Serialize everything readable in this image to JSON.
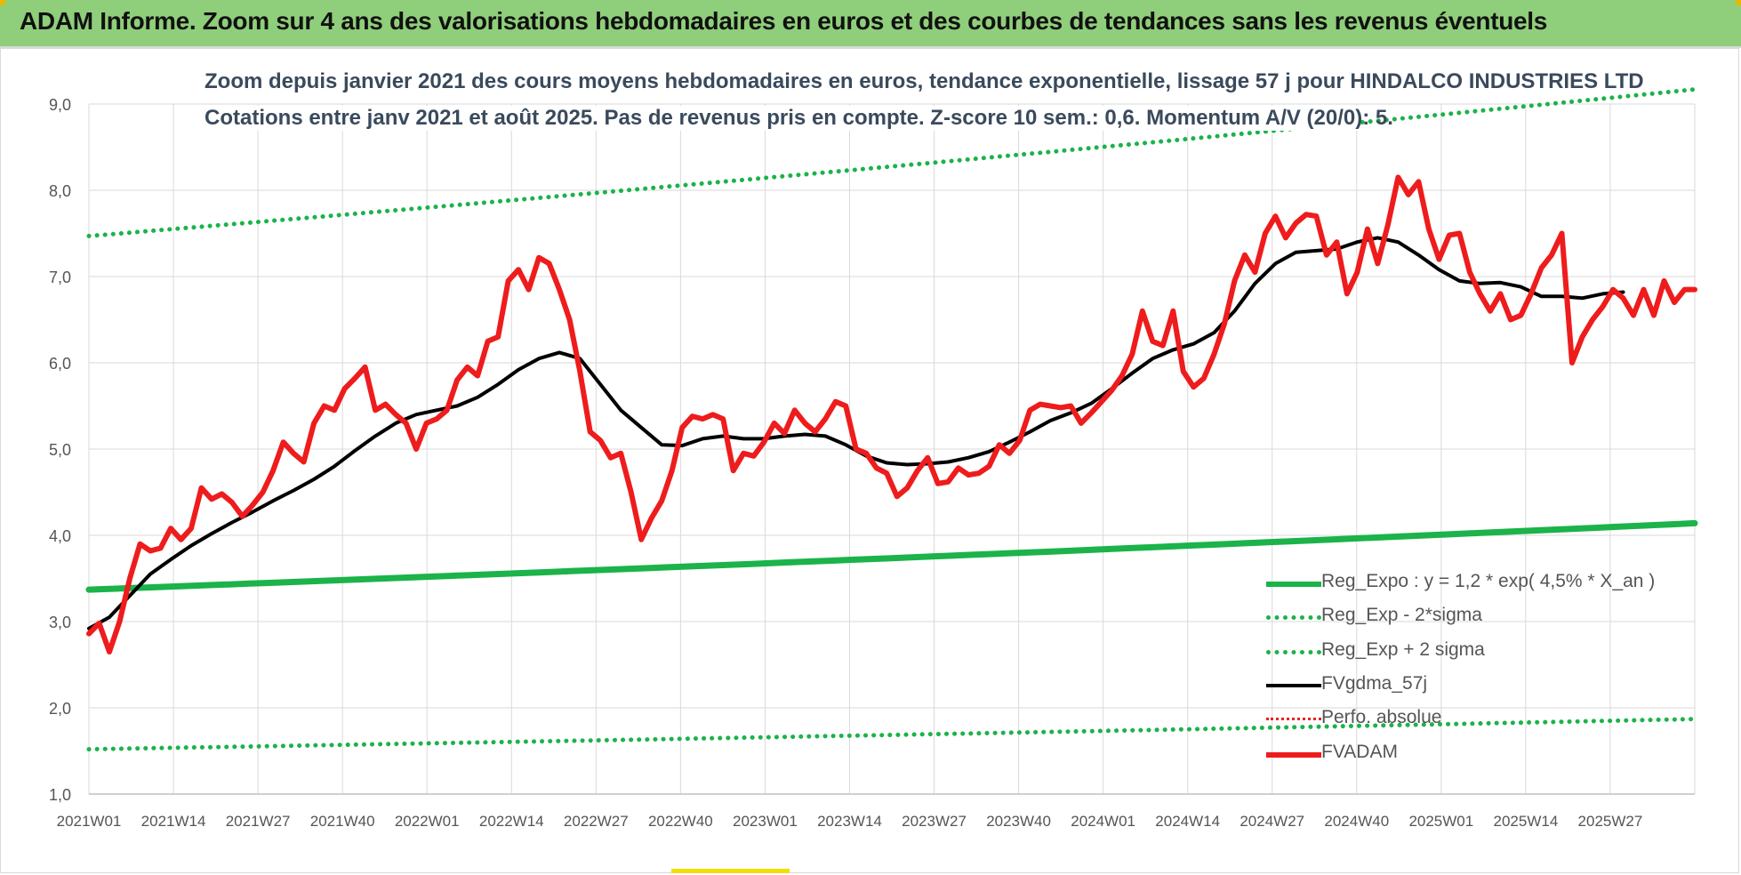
{
  "banner": {
    "title": "ADAM Informe. Zoom sur 4 ans des valorisations hebdomadaires en euros et des courbes de tendances sans les revenus éventuels"
  },
  "chart_data": {
    "type": "line",
    "title": "Zoom depuis janvier 2021 des cours moyens hebdomadaires en euros, tendance exponentielle, lissage 57 j pour HINDALCO INDUSTRIES LTD",
    "subtitle": "Cotations entre janv 2021 et août 2025.  Pas de revenus pris en compte. Z-score 10 sem.: 0,6. Momentum A/V (20/0): 5.",
    "ylim": [
      1.0,
      9.0
    ],
    "yticks": [
      "1,0",
      "2,0",
      "3,0",
      "4,0",
      "5,0",
      "6,0",
      "7,0",
      "8,0",
      "9,0"
    ],
    "xtick_labels": [
      "2021W01",
      "2021W14",
      "2021W27",
      "2021W40",
      "2022W01",
      "2022W14",
      "2022W27",
      "2022W40",
      "2023W01",
      "2023W14",
      "2023W27",
      "2023W40",
      "2024W01",
      "2024W14",
      "2024W27",
      "2024W40",
      "2025W01",
      "2025W14",
      "2025W27"
    ],
    "x_count_weeks": 237,
    "grid": true,
    "legend_position": "bottom-right",
    "series": [
      {
        "name": "Reg_Expo : y = 1,2 * exp( 4,5% *  X_an )",
        "color": "#1bb34a",
        "style": "solid",
        "start": 3.37,
        "end": 4.14
      },
      {
        "name": "Reg_Exp - 2*sigma",
        "color": "#1bb34a",
        "style": "dotted",
        "start": 1.52,
        "end": 1.87
      },
      {
        "name": "Reg_Exp + 2 sigma",
        "color": "#1bb34a",
        "style": "dotted",
        "start": 7.47,
        "end": 9.17
      },
      {
        "name": "FVgdma_57j",
        "color": "#000000",
        "style": "solid",
        "points": [
          [
            0,
            2.92
          ],
          [
            4,
            3.05
          ],
          [
            8,
            3.3
          ],
          [
            12,
            3.55
          ],
          [
            16,
            3.72
          ],
          [
            20,
            3.88
          ],
          [
            24,
            4.02
          ],
          [
            28,
            4.15
          ],
          [
            32,
            4.27
          ],
          [
            36,
            4.4
          ],
          [
            40,
            4.52
          ],
          [
            44,
            4.65
          ],
          [
            48,
            4.8
          ],
          [
            52,
            4.98
          ],
          [
            56,
            5.15
          ],
          [
            60,
            5.3
          ],
          [
            64,
            5.4
          ],
          [
            68,
            5.45
          ],
          [
            72,
            5.5
          ],
          [
            76,
            5.6
          ],
          [
            80,
            5.75
          ],
          [
            84,
            5.92
          ],
          [
            88,
            6.05
          ],
          [
            92,
            6.12
          ],
          [
            96,
            6.05
          ],
          [
            100,
            5.75
          ],
          [
            104,
            5.45
          ],
          [
            108,
            5.25
          ],
          [
            112,
            5.05
          ],
          [
            116,
            5.04
          ],
          [
            120,
            5.12
          ],
          [
            124,
            5.15
          ],
          [
            128,
            5.12
          ],
          [
            132,
            5.12
          ],
          [
            136,
            5.15
          ],
          [
            140,
            5.17
          ],
          [
            144,
            5.15
          ],
          [
            148,
            5.05
          ],
          [
            152,
            4.92
          ],
          [
            156,
            4.84
          ],
          [
            160,
            4.82
          ],
          [
            164,
            4.83
          ],
          [
            168,
            4.85
          ],
          [
            172,
            4.9
          ],
          [
            176,
            4.97
          ],
          [
            180,
            5.08
          ],
          [
            184,
            5.2
          ],
          [
            188,
            5.33
          ],
          [
            192,
            5.42
          ],
          [
            196,
            5.53
          ],
          [
            200,
            5.7
          ],
          [
            204,
            5.88
          ],
          [
            208,
            6.05
          ],
          [
            212,
            6.15
          ],
          [
            216,
            6.22
          ],
          [
            220,
            6.35
          ],
          [
            224,
            6.6
          ],
          [
            228,
            6.92
          ],
          [
            232,
            7.15
          ],
          [
            236,
            7.28
          ],
          [
            240,
            7.3
          ],
          [
            244,
            7.32
          ],
          [
            248,
            7.4
          ],
          [
            252,
            7.45
          ],
          [
            256,
            7.4
          ],
          [
            260,
            7.25
          ],
          [
            264,
            7.08
          ],
          [
            268,
            6.95
          ],
          [
            272,
            6.92
          ],
          [
            276,
            6.93
          ],
          [
            280,
            6.88
          ],
          [
            284,
            6.77
          ],
          [
            288,
            6.77
          ],
          [
            292,
            6.75
          ],
          [
            296,
            6.8
          ],
          [
            300,
            6.82
          ]
        ]
      },
      {
        "name": "Perfo. absolue",
        "color": "#e8231f",
        "style": "dotted",
        "points": []
      },
      {
        "name": "FVADAM",
        "color": "#ee1c1c",
        "style": "solid",
        "points": [
          [
            0,
            2.86
          ],
          [
            2,
            2.98
          ],
          [
            4,
            2.65
          ],
          [
            6,
            3.0
          ],
          [
            8,
            3.5
          ],
          [
            10,
            3.9
          ],
          [
            12,
            3.82
          ],
          [
            14,
            3.85
          ],
          [
            16,
            4.08
          ],
          [
            18,
            3.95
          ],
          [
            20,
            4.08
          ],
          [
            22,
            4.55
          ],
          [
            24,
            4.42
          ],
          [
            26,
            4.48
          ],
          [
            28,
            4.38
          ],
          [
            30,
            4.22
          ],
          [
            32,
            4.35
          ],
          [
            34,
            4.5
          ],
          [
            36,
            4.75
          ],
          [
            38,
            5.08
          ],
          [
            40,
            4.95
          ],
          [
            42,
            4.85
          ],
          [
            44,
            5.3
          ],
          [
            46,
            5.5
          ],
          [
            48,
            5.45
          ],
          [
            50,
            5.7
          ],
          [
            52,
            5.82
          ],
          [
            54,
            5.95
          ],
          [
            56,
            5.45
          ],
          [
            58,
            5.52
          ],
          [
            60,
            5.4
          ],
          [
            62,
            5.3
          ],
          [
            64,
            5.0
          ],
          [
            66,
            5.3
          ],
          [
            68,
            5.35
          ],
          [
            70,
            5.45
          ],
          [
            72,
            5.8
          ],
          [
            74,
            5.95
          ],
          [
            76,
            5.85
          ],
          [
            78,
            6.25
          ],
          [
            80,
            6.3
          ],
          [
            82,
            6.95
          ],
          [
            84,
            7.08
          ],
          [
            86,
            6.85
          ],
          [
            88,
            7.22
          ],
          [
            90,
            7.15
          ],
          [
            92,
            6.85
          ],
          [
            94,
            6.5
          ],
          [
            96,
            5.9
          ],
          [
            98,
            5.2
          ],
          [
            100,
            5.1
          ],
          [
            102,
            4.9
          ],
          [
            104,
            4.95
          ],
          [
            106,
            4.5
          ],
          [
            108,
            3.95
          ],
          [
            110,
            4.2
          ],
          [
            112,
            4.4
          ],
          [
            114,
            4.75
          ],
          [
            116,
            5.25
          ],
          [
            118,
            5.38
          ],
          [
            120,
            5.35
          ],
          [
            122,
            5.4
          ],
          [
            124,
            5.35
          ],
          [
            126,
            4.75
          ],
          [
            128,
            4.95
          ],
          [
            130,
            4.92
          ],
          [
            132,
            5.08
          ],
          [
            134,
            5.3
          ],
          [
            136,
            5.18
          ],
          [
            138,
            5.45
          ],
          [
            140,
            5.3
          ],
          [
            142,
            5.2
          ],
          [
            144,
            5.35
          ],
          [
            146,
            5.55
          ],
          [
            148,
            5.5
          ],
          [
            150,
            5.0
          ],
          [
            152,
            4.95
          ],
          [
            154,
            4.78
          ],
          [
            156,
            4.72
          ],
          [
            158,
            4.45
          ],
          [
            160,
            4.55
          ],
          [
            162,
            4.75
          ],
          [
            164,
            4.9
          ],
          [
            166,
            4.6
          ],
          [
            168,
            4.62
          ],
          [
            170,
            4.78
          ],
          [
            172,
            4.7
          ],
          [
            174,
            4.72
          ],
          [
            176,
            4.8
          ],
          [
            178,
            5.05
          ],
          [
            180,
            4.95
          ],
          [
            182,
            5.1
          ],
          [
            184,
            5.45
          ],
          [
            186,
            5.52
          ],
          [
            188,
            5.5
          ],
          [
            190,
            5.48
          ],
          [
            192,
            5.5
          ],
          [
            194,
            5.3
          ],
          [
            196,
            5.42
          ],
          [
            198,
            5.55
          ],
          [
            200,
            5.68
          ],
          [
            202,
            5.85
          ],
          [
            204,
            6.1
          ],
          [
            206,
            6.6
          ],
          [
            208,
            6.25
          ],
          [
            210,
            6.2
          ],
          [
            212,
            6.6
          ],
          [
            214,
            5.9
          ],
          [
            216,
            5.72
          ],
          [
            218,
            5.82
          ],
          [
            220,
            6.1
          ],
          [
            222,
            6.45
          ],
          [
            224,
            6.95
          ],
          [
            226,
            7.25
          ],
          [
            228,
            7.05
          ],
          [
            230,
            7.5
          ],
          [
            232,
            7.7
          ],
          [
            234,
            7.45
          ],
          [
            236,
            7.62
          ],
          [
            238,
            7.72
          ],
          [
            240,
            7.7
          ],
          [
            242,
            7.25
          ],
          [
            244,
            7.4
          ],
          [
            246,
            6.8
          ],
          [
            248,
            7.05
          ],
          [
            250,
            7.55
          ],
          [
            252,
            7.15
          ],
          [
            254,
            7.6
          ],
          [
            256,
            8.15
          ],
          [
            258,
            7.95
          ],
          [
            260,
            8.1
          ],
          [
            262,
            7.55
          ],
          [
            264,
            7.2
          ],
          [
            266,
            7.48
          ],
          [
            268,
            7.5
          ],
          [
            270,
            7.05
          ],
          [
            272,
            6.8
          ],
          [
            274,
            6.6
          ],
          [
            276,
            6.8
          ],
          [
            278,
            6.5
          ],
          [
            280,
            6.55
          ],
          [
            282,
            6.8
          ],
          [
            284,
            7.1
          ],
          [
            286,
            7.25
          ],
          [
            288,
            7.5
          ],
          [
            290,
            6.0
          ],
          [
            292,
            6.3
          ],
          [
            294,
            6.5
          ],
          [
            296,
            6.65
          ],
          [
            298,
            6.85
          ],
          [
            300,
            6.75
          ],
          [
            302,
            6.55
          ],
          [
            304,
            6.85
          ],
          [
            306,
            6.55
          ],
          [
            308,
            6.95
          ],
          [
            310,
            6.7
          ],
          [
            312,
            6.85
          ],
          [
            314,
            6.85
          ]
        ]
      }
    ]
  }
}
